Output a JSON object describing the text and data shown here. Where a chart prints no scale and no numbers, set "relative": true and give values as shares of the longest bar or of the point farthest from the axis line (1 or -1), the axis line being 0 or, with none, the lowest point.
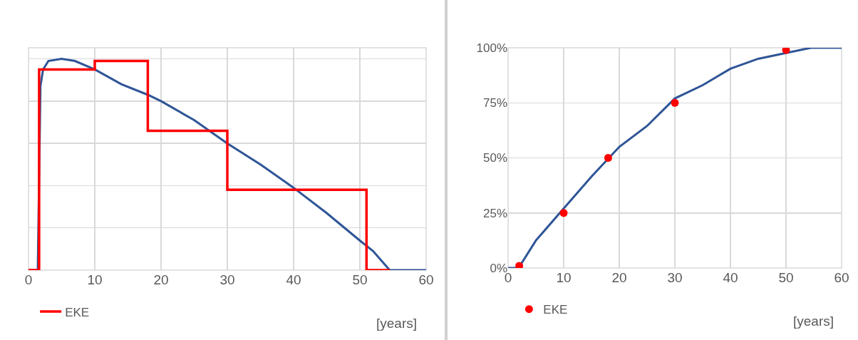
{
  "chart_data": [
    {
      "type": "line",
      "relative": true,
      "xlabel": "[years]",
      "xlim": [
        0,
        60
      ],
      "xticks": [
        0,
        10,
        20,
        30,
        40,
        50,
        60
      ],
      "grid": true,
      "legend": "bottom left",
      "tick_labels": "x",
      "series": [
        {
          "color": "#2f5597",
          "x": [
            0,
            1.4,
            1.8,
            2.2,
            3,
            5,
            7,
            10,
            14,
            18,
            20,
            25,
            30,
            35,
            40,
            45,
            50,
            52,
            54.5,
            60
          ],
          "values": [
            0,
            0,
            0.87,
            0.95,
            0.99,
            1,
            0.99,
            0.95,
            0.88,
            0.83,
            0.8,
            0.71,
            0.6,
            0.5,
            0.39,
            0.27,
            0.14,
            0.09,
            0,
            0
          ]
        },
        {
          "name": "EKE",
          "type": "step",
          "color": "#ff0000",
          "x": [
            0,
            1.6,
            10,
            18,
            30,
            51,
            54.5
          ],
          "values": [
            0,
            0.95,
            0.99,
            0.66,
            0.38,
            0,
            0
          ]
        }
      ]
    },
    {
      "type": "line",
      "xlabel": "[years]",
      "xlim": [
        0,
        60
      ],
      "xticks": [
        0,
        10,
        20,
        30,
        40,
        50,
        60
      ],
      "ylim": [
        0,
        100
      ],
      "yticks": [
        {
          "value": 0,
          "label": "0%"
        },
        {
          "value": 25,
          "label": "25%"
        },
        {
          "value": 50,
          "label": "50%"
        },
        {
          "value": 75,
          "label": "75%"
        },
        {
          "value": 100,
          "label": "100%"
        }
      ],
      "grid": true,
      "legend": "bottom left",
      "series": [
        {
          "color": "#2f5597",
          "x": [
            0,
            1.5,
            2,
            5,
            10,
            15,
            20,
            25,
            30,
            35,
            40,
            45,
            54.5,
            60
          ],
          "values": [
            0,
            0,
            0.5,
            12.5,
            27,
            41.5,
            55,
            64.5,
            77,
            83,
            90.5,
            95,
            100,
            100
          ]
        },
        {
          "name": "EKE",
          "type": "scatter",
          "marker": "circle",
          "color": "#ff0000",
          "x": [
            2,
            10,
            18,
            30,
            50
          ],
          "values": [
            1,
            25,
            50,
            75,
            99
          ]
        }
      ]
    }
  ]
}
